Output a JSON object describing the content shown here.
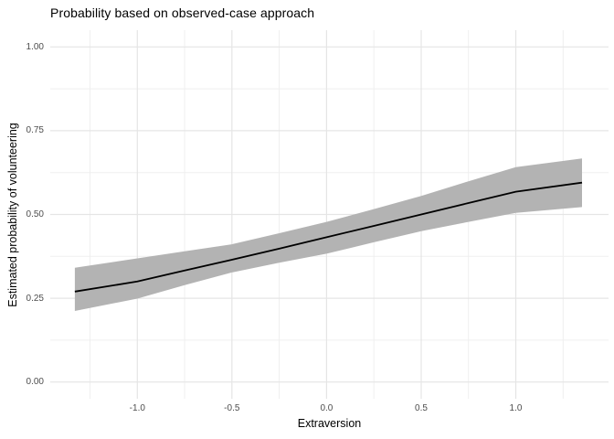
{
  "chart_data": {
    "type": "line",
    "title": "Probability based on observed-case approach",
    "xlabel": "Extraversion",
    "ylabel": "Estimated probability of volunteering",
    "legend": "none",
    "grid": "major+minor",
    "xlim": [
      -1.46,
      1.49
    ],
    "ylim": [
      -0.05,
      1.05
    ],
    "x_major_ticks": [
      -1.0,
      -0.5,
      0.0,
      0.5,
      1.0
    ],
    "x_tick_labels": [
      "-1.0",
      "-0.5",
      "0.0",
      "0.5",
      "1.0"
    ],
    "x_minor_ticks": [
      -1.25,
      -0.75,
      -0.25,
      0.25,
      0.75,
      1.25
    ],
    "y_major_ticks": [
      0.0,
      0.25,
      0.5,
      0.75,
      1.0
    ],
    "y_tick_labels": [
      "0.00",
      "0.25",
      "0.50",
      "0.75",
      "1.00"
    ],
    "y_minor_ticks": [
      0.125,
      0.375,
      0.625,
      0.875
    ],
    "series": [
      {
        "name": "fit-line",
        "x": [
          -1.33,
          -1.0,
          -0.75,
          -0.5,
          -0.25,
          0.0,
          0.25,
          0.5,
          0.75,
          1.0,
          1.35
        ],
        "y": [
          0.27,
          0.3,
          0.333,
          0.365,
          0.398,
          0.432,
          0.466,
          0.5,
          0.534,
          0.568,
          0.595
        ]
      },
      {
        "name": "confidence-band",
        "x": [
          -1.33,
          -1.0,
          -0.75,
          -0.5,
          -0.25,
          0.0,
          0.25,
          0.5,
          0.75,
          1.0,
          1.35
        ],
        "upper": [
          0.341,
          0.369,
          0.39,
          0.411,
          0.444,
          0.478,
          0.516,
          0.555,
          0.599,
          0.641,
          0.667
        ],
        "lower": [
          0.212,
          0.249,
          0.289,
          0.327,
          0.356,
          0.383,
          0.417,
          0.45,
          0.478,
          0.505,
          0.522
        ]
      }
    ],
    "colors": {
      "background": "#ffffff",
      "line": "#000000",
      "band": "#b3b3b3",
      "grid_major": "#e5e5e5",
      "grid_minor": "#efefef",
      "tick_label": "#4d4d4d",
      "title": "#000000",
      "axis_title": "#000000"
    }
  }
}
